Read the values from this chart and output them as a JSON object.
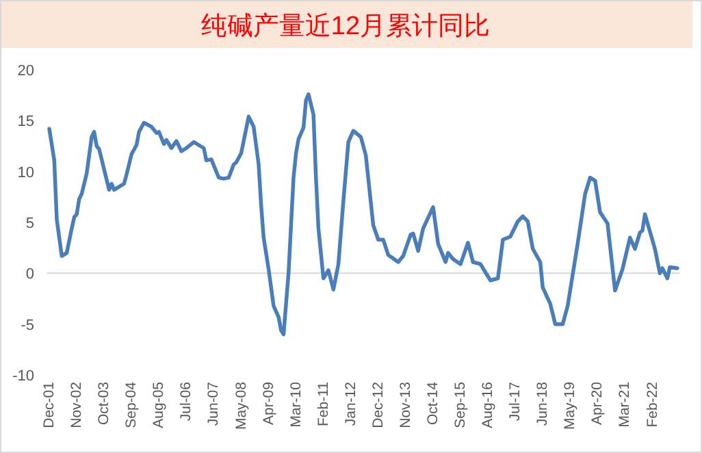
{
  "chart_data": {
    "type": "line",
    "title": "纯碱产量近12月累计同比",
    "series": [
      {
        "color": "#4a7ebb",
        "x": [
          "2001-12",
          "2002-02",
          "2002-03",
          "2002-05",
          "2002-07",
          "2002-09",
          "2002-10",
          "2002-11",
          "2002-12",
          "2003-01",
          "2003-03",
          "2003-05",
          "2003-06",
          "2003-07",
          "2003-08",
          "2003-10",
          "2003-12",
          "2004-01",
          "2004-02",
          "2004-04",
          "2004-06",
          "2004-07",
          "2004-09",
          "2004-11",
          "2004-12",
          "2005-02",
          "2005-05",
          "2005-07",
          "2005-08",
          "2005-10",
          "2005-11",
          "2006-01",
          "2006-03",
          "2006-05",
          "2006-07",
          "2006-10",
          "2006-12",
          "2007-02",
          "2007-03",
          "2007-05",
          "2007-08",
          "2007-10",
          "2007-12",
          "2008-02",
          "2008-03",
          "2008-05",
          "2008-08",
          "2008-10",
          "2008-12",
          "2009-01",
          "2009-02",
          "2009-04",
          "2009-06",
          "2009-08",
          "2009-09",
          "2009-10",
          "2009-12",
          "2010-02",
          "2010-03",
          "2010-04",
          "2010-06",
          "2010-07",
          "2010-08",
          "2010-10",
          "2010-11",
          "2010-12",
          "2011-02",
          "2011-04",
          "2011-06",
          "2011-08",
          "2011-10",
          "2011-12",
          "2012-02",
          "2012-05",
          "2012-07",
          "2012-10",
          "2012-12",
          "2013-02",
          "2013-04",
          "2013-08",
          "2013-10",
          "2014-01",
          "2014-02",
          "2014-04",
          "2014-06",
          "2014-10",
          "2014-12",
          "2015-03",
          "2015-04",
          "2015-06",
          "2015-09",
          "2015-12",
          "2016-02",
          "2016-05",
          "2016-09",
          "2016-12",
          "2017-02",
          "2017-05",
          "2017-08",
          "2017-10",
          "2017-12",
          "2018-02",
          "2018-05",
          "2018-06",
          "2018-09",
          "2018-11",
          "2019-02",
          "2019-04",
          "2019-08",
          "2019-11",
          "2020-01",
          "2020-03",
          "2020-05",
          "2020-08",
          "2020-11",
          "2021-02",
          "2021-05",
          "2021-07",
          "2021-09",
          "2021-10",
          "2021-11",
          "2022-03",
          "2022-05",
          "2022-06",
          "2022-08",
          "2022-09",
          "2022-12"
        ],
        "values": [
          14.2,
          11.1,
          5.3,
          1.7,
          2.0,
          4.4,
          5.5,
          5.8,
          7.3,
          7.8,
          9.8,
          13.4,
          13.9,
          12.5,
          12.2,
          10.2,
          8.2,
          8.8,
          8.2,
          8.5,
          8.8,
          9.7,
          11.7,
          12.6,
          13.9,
          14.8,
          14.4,
          13.8,
          13.9,
          12.7,
          13.1,
          12.3,
          13.0,
          12.0,
          12.3,
          12.9,
          12.6,
          12.3,
          11.1,
          11.2,
          9.4,
          9.3,
          9.4,
          10.7,
          10.9,
          11.8,
          15.4,
          14.4,
          10.7,
          6.7,
          3.5,
          0.4,
          -3.2,
          -4.3,
          -5.6,
          -6.0,
          0,
          9.4,
          11.8,
          13.2,
          14.3,
          17.0,
          17.6,
          15.6,
          9.4,
          4.4,
          -0.5,
          0.3,
          -1.6,
          0.9,
          7.1,
          12.9,
          14.0,
          13.4,
          11.6,
          4.7,
          3.3,
          3.3,
          1.8,
          1.1,
          1.7,
          3.8,
          3.9,
          2.2,
          4.4,
          6.5,
          2.9,
          1.1,
          2.0,
          1.4,
          0.9,
          3.0,
          1.1,
          0.9,
          -0.7,
          -0.5,
          3.3,
          3.6,
          5.1,
          5.6,
          5.1,
          2.4,
          1.1,
          -1.4,
          -3.0,
          -5.0,
          -5.0,
          -3.2,
          2.9,
          7.8,
          9.4,
          9.1,
          6.0,
          4.9,
          -1.7,
          0.4,
          3.5,
          2.4,
          4.0,
          4.2,
          5.8,
          2.4,
          0,
          0.5,
          -0.5,
          0.6,
          0.5
        ]
      }
    ],
    "xlim": [
      "2001-11",
      "2023-01"
    ],
    "xticks": [
      {
        "value": "2001-12",
        "label": "Dec-01"
      },
      {
        "value": "2002-11",
        "label": "Nov-02"
      },
      {
        "value": "2003-10",
        "label": "Oct-03"
      },
      {
        "value": "2004-09",
        "label": "Sep-04"
      },
      {
        "value": "2005-08",
        "label": "Aug-05"
      },
      {
        "value": "2006-07",
        "label": "Jul-06"
      },
      {
        "value": "2007-06",
        "label": "Jun-07"
      },
      {
        "value": "2008-05",
        "label": "May-08"
      },
      {
        "value": "2009-04",
        "label": "Apr-09"
      },
      {
        "value": "2010-03",
        "label": "Mar-10"
      },
      {
        "value": "2011-02",
        "label": "Feb-11"
      },
      {
        "value": "2012-01",
        "label": "Jan-12"
      },
      {
        "value": "2012-12",
        "label": "Dec-12"
      },
      {
        "value": "2013-11",
        "label": "Nov-13"
      },
      {
        "value": "2014-10",
        "label": "Oct-14"
      },
      {
        "value": "2015-09",
        "label": "Sep-15"
      },
      {
        "value": "2016-08",
        "label": "Aug-16"
      },
      {
        "value": "2017-07",
        "label": "Jul-17"
      },
      {
        "value": "2018-06",
        "label": "Jun-18"
      },
      {
        "value": "2019-05",
        "label": "May-19"
      },
      {
        "value": "2020-04",
        "label": "Apr-20"
      },
      {
        "value": "2021-03",
        "label": "Mar-21"
      },
      {
        "value": "2022-02",
        "label": "Feb-22"
      }
    ],
    "ylim": [
      -10,
      20
    ],
    "yticks": [
      -10,
      -5,
      0,
      5,
      10,
      15,
      20
    ],
    "marker": "none",
    "line_style": "solid"
  }
}
